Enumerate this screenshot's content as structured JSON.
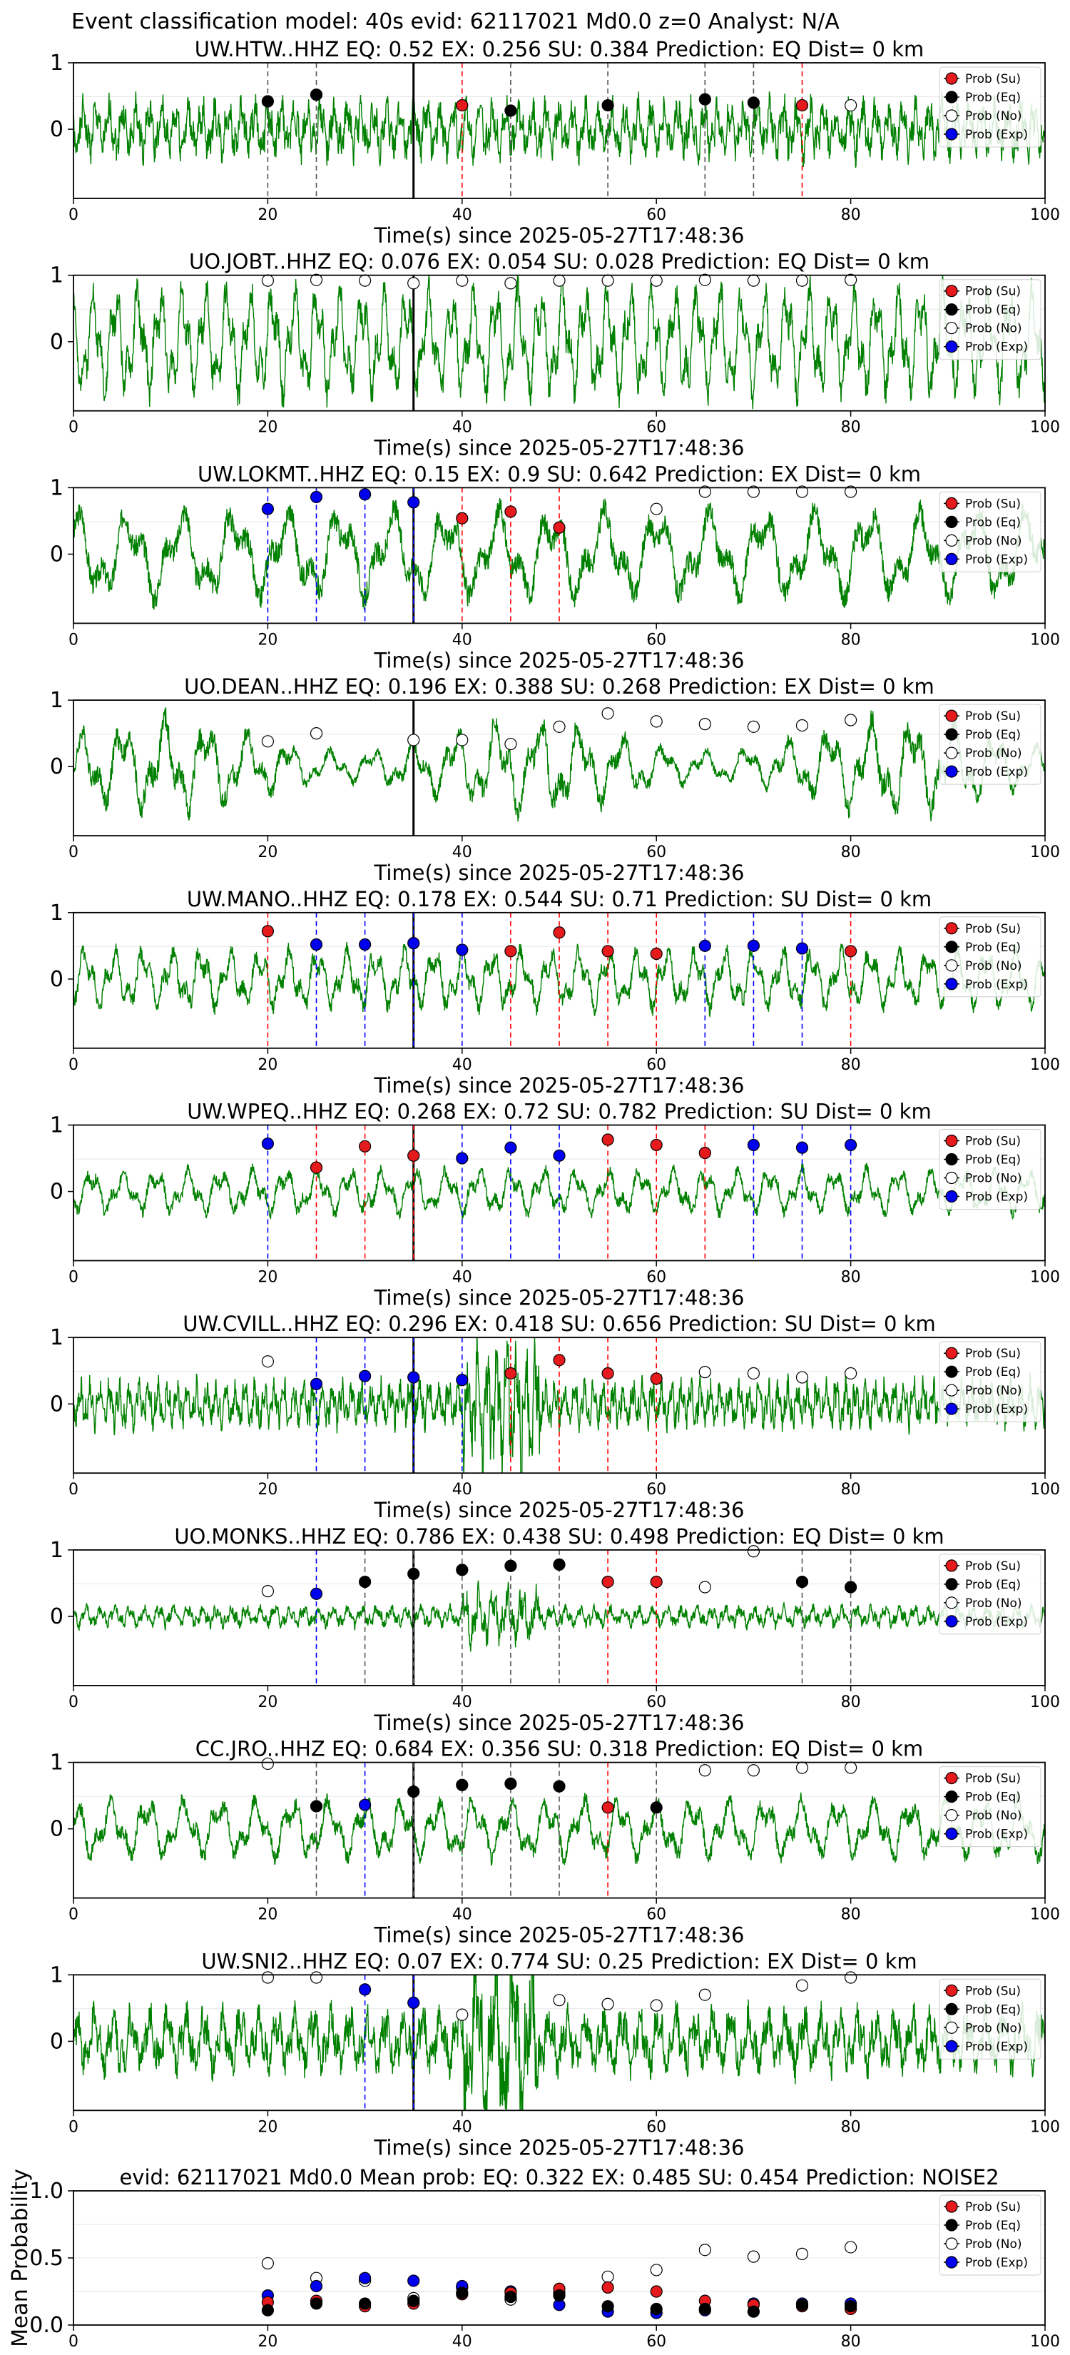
{
  "suptitle": "Event classification model: 40s evid: 62117021 Md0.0 z=0 Analyst: N/A",
  "legend": [
    "Prob (Su)",
    "Prob (Eq)",
    "Prob (No)",
    "Prob (Exp)"
  ],
  "colors": {
    "trace": "#008000",
    "su": "#e41a1c",
    "eq": "#000000",
    "no": "#ffffff",
    "exp": "#0000ee",
    "su_line": "#ff0000",
    "eq_line": "#555555",
    "exp_line": "#0000ff",
    "onset": "#000000"
  },
  "chart_data": [
    {
      "type": "line",
      "title": "UW.HTW..HHZ   EQ: 0.52  EX: 0.256  SU: 0.384   Prediction: EQ    Dist= 0 km",
      "xlabel": "Time(s) since 2025-05-27T17:48:36",
      "xlim": [
        0,
        100
      ],
      "xticks": [
        "0",
        "20",
        "40",
        "60",
        "80",
        "100"
      ],
      "yticks": [
        "1",
        "0"
      ],
      "onset": 35,
      "amp": 0.5,
      "freq": 2.2,
      "seed": 1,
      "markers": [
        {
          "x": 20,
          "y": 0.42,
          "c": "eq"
        },
        {
          "x": 25,
          "y": 0.52,
          "c": "eq"
        },
        {
          "x": 40,
          "y": 0.36,
          "c": "su"
        },
        {
          "x": 45,
          "y": 0.28,
          "c": "eq"
        },
        {
          "x": 55,
          "y": 0.36,
          "c": "eq"
        },
        {
          "x": 65,
          "y": 0.45,
          "c": "eq"
        },
        {
          "x": 70,
          "y": 0.4,
          "c": "eq"
        },
        {
          "x": 75,
          "y": 0.36,
          "c": "su"
        },
        {
          "x": 80,
          "y": 0.36,
          "c": "no"
        }
      ]
    },
    {
      "type": "line",
      "title": "UO.JOBT..HHZ   EQ: 0.076  EX: 0.054  SU: 0.028   Prediction: EQ    Dist= 0 km",
      "xlabel": "Time(s) since 2025-05-27T17:48:36",
      "xlim": [
        0,
        100
      ],
      "xticks": [
        "0",
        "20",
        "40",
        "60",
        "80",
        "100"
      ],
      "yticks": [
        "1",
        "0"
      ],
      "onset": 35,
      "amp": 1.1,
      "freq": 1.3,
      "seed": 2,
      "markers": [
        {
          "x": 20,
          "y": 0.92,
          "c": "no"
        },
        {
          "x": 25,
          "y": 0.93,
          "c": "no"
        },
        {
          "x": 30,
          "y": 0.92,
          "c": "no"
        },
        {
          "x": 35,
          "y": 0.88,
          "c": "no"
        },
        {
          "x": 40,
          "y": 0.92,
          "c": "no"
        },
        {
          "x": 45,
          "y": 0.88,
          "c": "no"
        },
        {
          "x": 50,
          "y": 0.92,
          "c": "no"
        },
        {
          "x": 55,
          "y": 0.92,
          "c": "no"
        },
        {
          "x": 60,
          "y": 0.92,
          "c": "no"
        },
        {
          "x": 65,
          "y": 0.93,
          "c": "no"
        },
        {
          "x": 70,
          "y": 0.92,
          "c": "no"
        },
        {
          "x": 75,
          "y": 0.92,
          "c": "no"
        },
        {
          "x": 80,
          "y": 0.93,
          "c": "no"
        }
      ]
    },
    {
      "type": "line",
      "title": "UW.LOKMT..HHZ   EQ: 0.15  EX: 0.9  SU: 0.642   Prediction: EX    Dist= 0 km",
      "xlabel": "Time(s) since 2025-05-27T17:48:36",
      "xlim": [
        0,
        100
      ],
      "xticks": [
        "0",
        "20",
        "40",
        "60",
        "80",
        "100"
      ],
      "yticks": [
        "1",
        "0"
      ],
      "onset": 35,
      "amp": 0.9,
      "freq": 0.55,
      "seed": 3,
      "markers": [
        {
          "x": 20,
          "y": 0.68,
          "c": "exp"
        },
        {
          "x": 25,
          "y": 0.86,
          "c": "exp"
        },
        {
          "x": 30,
          "y": 0.9,
          "c": "exp"
        },
        {
          "x": 35,
          "y": 0.78,
          "c": "exp"
        },
        {
          "x": 40,
          "y": 0.54,
          "c": "su"
        },
        {
          "x": 45,
          "y": 0.64,
          "c": "su"
        },
        {
          "x": 50,
          "y": 0.4,
          "c": "su"
        },
        {
          "x": 60,
          "y": 0.68,
          "c": "no"
        },
        {
          "x": 65,
          "y": 0.94,
          "c": "no"
        },
        {
          "x": 70,
          "y": 0.94,
          "c": "no"
        },
        {
          "x": 75,
          "y": 0.94,
          "c": "no"
        },
        {
          "x": 80,
          "y": 0.94,
          "c": "no"
        }
      ]
    },
    {
      "type": "line",
      "title": "UO.DEAN..HHZ   EQ: 0.196  EX: 0.388  SU: 0.268   Prediction: EX    Dist= 0 km",
      "xlabel": "Time(s) since 2025-05-27T17:48:36",
      "xlim": [
        0,
        100
      ],
      "xticks": [
        "0",
        "20",
        "40",
        "60",
        "80",
        "100"
      ],
      "yticks": [
        "1",
        "0"
      ],
      "onset": 35,
      "amp": 0.8,
      "freq": 0.7,
      "seed": 4,
      "markers": [
        {
          "x": 20,
          "y": 0.38,
          "c": "no"
        },
        {
          "x": 25,
          "y": 0.5,
          "c": "no"
        },
        {
          "x": 35,
          "y": 0.4,
          "c": "no"
        },
        {
          "x": 40,
          "y": 0.4,
          "c": "no"
        },
        {
          "x": 45,
          "y": 0.34,
          "c": "no"
        },
        {
          "x": 50,
          "y": 0.6,
          "c": "no"
        },
        {
          "x": 55,
          "y": 0.8,
          "c": "no"
        },
        {
          "x": 60,
          "y": 0.68,
          "c": "no"
        },
        {
          "x": 65,
          "y": 0.64,
          "c": "no"
        },
        {
          "x": 70,
          "y": 0.6,
          "c": "no"
        },
        {
          "x": 75,
          "y": 0.62,
          "c": "no"
        },
        {
          "x": 80,
          "y": 0.7,
          "c": "no"
        }
      ]
    },
    {
      "type": "line",
      "title": "UW.MANO..HHZ   EQ: 0.178  EX: 0.544  SU: 0.71   Prediction: SU    Dist= 0 km",
      "xlabel": "Time(s) since 2025-05-27T17:48:36",
      "xlim": [
        0,
        100
      ],
      "xticks": [
        "0",
        "20",
        "40",
        "60",
        "80",
        "100"
      ],
      "yticks": [
        "1",
        "0"
      ],
      "onset": 35,
      "amp": 0.6,
      "freq": 1.0,
      "seed": 5,
      "markers": [
        {
          "x": 20,
          "y": 0.72,
          "c": "su"
        },
        {
          "x": 25,
          "y": 0.52,
          "c": "exp"
        },
        {
          "x": 30,
          "y": 0.52,
          "c": "exp"
        },
        {
          "x": 35,
          "y": 0.54,
          "c": "exp"
        },
        {
          "x": 40,
          "y": 0.44,
          "c": "exp"
        },
        {
          "x": 45,
          "y": 0.42,
          "c": "su"
        },
        {
          "x": 50,
          "y": 0.7,
          "c": "su"
        },
        {
          "x": 55,
          "y": 0.42,
          "c": "su"
        },
        {
          "x": 60,
          "y": 0.38,
          "c": "su"
        },
        {
          "x": 65,
          "y": 0.5,
          "c": "exp"
        },
        {
          "x": 70,
          "y": 0.5,
          "c": "exp"
        },
        {
          "x": 75,
          "y": 0.46,
          "c": "exp"
        },
        {
          "x": 80,
          "y": 0.42,
          "c": "su"
        }
      ]
    },
    {
      "type": "line",
      "title": "UW.WPEQ..HHZ   EQ: 0.268  EX: 0.72  SU: 0.782   Prediction: SU    Dist= 0 km",
      "xlabel": "Time(s) since 2025-05-27T17:48:36",
      "xlim": [
        0,
        100
      ],
      "xticks": [
        "0",
        "20",
        "40",
        "60",
        "80",
        "100"
      ],
      "yticks": [
        "1",
        "0"
      ],
      "onset": 35,
      "amp": 0.45,
      "freq": 0.9,
      "seed": 6,
      "markers": [
        {
          "x": 20,
          "y": 0.72,
          "c": "exp"
        },
        {
          "x": 25,
          "y": 0.36,
          "c": "su"
        },
        {
          "x": 30,
          "y": 0.68,
          "c": "su"
        },
        {
          "x": 35,
          "y": 0.54,
          "c": "su"
        },
        {
          "x": 40,
          "y": 0.5,
          "c": "exp"
        },
        {
          "x": 45,
          "y": 0.66,
          "c": "exp"
        },
        {
          "x": 50,
          "y": 0.54,
          "c": "exp"
        },
        {
          "x": 55,
          "y": 0.78,
          "c": "su"
        },
        {
          "x": 60,
          "y": 0.7,
          "c": "su"
        },
        {
          "x": 65,
          "y": 0.58,
          "c": "su"
        },
        {
          "x": 70,
          "y": 0.7,
          "c": "exp"
        },
        {
          "x": 75,
          "y": 0.66,
          "c": "exp"
        },
        {
          "x": 80,
          "y": 0.7,
          "c": "exp"
        }
      ]
    },
    {
      "type": "line",
      "title": "UW.CVILL..HHZ   EQ: 0.296  EX: 0.418  SU: 0.656   Prediction: SU    Dist= 0 km",
      "xlabel": "Time(s) since 2025-05-27T17:48:36",
      "xlim": [
        0,
        100
      ],
      "xticks": [
        "0",
        "20",
        "40",
        "60",
        "80",
        "100"
      ],
      "yticks": [
        "1",
        "0"
      ],
      "onset": 35,
      "amp": 0.4,
      "freq": 3.0,
      "seed": 7,
      "markers": [
        {
          "x": 20,
          "y": 0.64,
          "c": "no"
        },
        {
          "x": 25,
          "y": 0.3,
          "c": "exp"
        },
        {
          "x": 30,
          "y": 0.42,
          "c": "exp"
        },
        {
          "x": 35,
          "y": 0.4,
          "c": "exp"
        },
        {
          "x": 40,
          "y": 0.36,
          "c": "exp"
        },
        {
          "x": 45,
          "y": 0.46,
          "c": "su"
        },
        {
          "x": 50,
          "y": 0.66,
          "c": "su"
        },
        {
          "x": 55,
          "y": 0.46,
          "c": "su"
        },
        {
          "x": 60,
          "y": 0.38,
          "c": "su"
        },
        {
          "x": 65,
          "y": 0.48,
          "c": "no"
        },
        {
          "x": 70,
          "y": 0.46,
          "c": "no"
        },
        {
          "x": 75,
          "y": 0.4,
          "c": "no"
        },
        {
          "x": 80,
          "y": 0.46,
          "c": "no"
        }
      ]
    },
    {
      "type": "line",
      "title": "UO.MONKS..HHZ   EQ: 0.786  EX: 0.438  SU: 0.498   Prediction: EQ    Dist= 0 km",
      "xlabel": "Time(s) since 2025-05-27T17:48:36",
      "xlim": [
        0,
        100
      ],
      "xticks": [
        "0",
        "20",
        "40",
        "60",
        "80",
        "100"
      ],
      "yticks": [
        "1",
        "0"
      ],
      "onset": 35,
      "amp": 0.18,
      "freq": 2.0,
      "seed": 8,
      "markers": [
        {
          "x": 20,
          "y": 0.38,
          "c": "no"
        },
        {
          "x": 25,
          "y": 0.34,
          "c": "exp"
        },
        {
          "x": 30,
          "y": 0.52,
          "c": "eq"
        },
        {
          "x": 35,
          "y": 0.64,
          "c": "eq"
        },
        {
          "x": 40,
          "y": 0.7,
          "c": "eq"
        },
        {
          "x": 45,
          "y": 0.76,
          "c": "eq"
        },
        {
          "x": 50,
          "y": 0.78,
          "c": "eq"
        },
        {
          "x": 55,
          "y": 0.52,
          "c": "su"
        },
        {
          "x": 60,
          "y": 0.52,
          "c": "su"
        },
        {
          "x": 65,
          "y": 0.44,
          "c": "no"
        },
        {
          "x": 70,
          "y": 0.98,
          "c": "no"
        },
        {
          "x": 75,
          "y": 0.52,
          "c": "eq"
        },
        {
          "x": 80,
          "y": 0.44,
          "c": "eq"
        }
      ]
    },
    {
      "type": "line",
      "title": "CC.JRO..HHZ   EQ: 0.684  EX: 0.356  SU: 0.318   Prediction: EQ    Dist= 0 km",
      "xlabel": "Time(s) since 2025-05-27T17:48:36",
      "xlim": [
        0,
        100
      ],
      "xticks": [
        "0",
        "20",
        "40",
        "60",
        "80",
        "100"
      ],
      "yticks": [
        "1",
        "0"
      ],
      "onset": 35,
      "amp": 0.6,
      "freq": 0.8,
      "seed": 9,
      "markers": [
        {
          "x": 20,
          "y": 0.98,
          "c": "no"
        },
        {
          "x": 25,
          "y": 0.34,
          "c": "eq"
        },
        {
          "x": 30,
          "y": 0.36,
          "c": "exp"
        },
        {
          "x": 35,
          "y": 0.56,
          "c": "eq"
        },
        {
          "x": 40,
          "y": 0.66,
          "c": "eq"
        },
        {
          "x": 45,
          "y": 0.68,
          "c": "eq"
        },
        {
          "x": 50,
          "y": 0.64,
          "c": "eq"
        },
        {
          "x": 55,
          "y": 0.32,
          "c": "su"
        },
        {
          "x": 60,
          "y": 0.32,
          "c": "eq"
        },
        {
          "x": 65,
          "y": 0.88,
          "c": "no"
        },
        {
          "x": 70,
          "y": 0.88,
          "c": "no"
        },
        {
          "x": 75,
          "y": 0.92,
          "c": "no"
        },
        {
          "x": 80,
          "y": 0.92,
          "c": "no"
        }
      ]
    },
    {
      "type": "line",
      "title": "UW.SNI2..HHZ   EQ: 0.07  EX: 0.774  SU: 0.25   Prediction: EX    Dist= 0 km",
      "xlabel": "Time(s) since 2025-05-27T17:48:36",
      "xlim": [
        0,
        100
      ],
      "xticks": [
        "0",
        "20",
        "40",
        "60",
        "80",
        "100"
      ],
      "yticks": [
        "1",
        "0"
      ],
      "onset": 35,
      "amp": 0.55,
      "freq": 1.6,
      "seed": 10,
      "markers": [
        {
          "x": 20,
          "y": 0.96,
          "c": "no"
        },
        {
          "x": 25,
          "y": 0.96,
          "c": "no"
        },
        {
          "x": 30,
          "y": 0.78,
          "c": "exp"
        },
        {
          "x": 35,
          "y": 0.58,
          "c": "exp"
        },
        {
          "x": 40,
          "y": 0.4,
          "c": "no"
        },
        {
          "x": 50,
          "y": 0.62,
          "c": "no"
        },
        {
          "x": 55,
          "y": 0.56,
          "c": "no"
        },
        {
          "x": 60,
          "y": 0.54,
          "c": "no"
        },
        {
          "x": 65,
          "y": 0.7,
          "c": "no"
        },
        {
          "x": 75,
          "y": 0.84,
          "c": "no"
        },
        {
          "x": 80,
          "y": 0.96,
          "c": "no"
        }
      ]
    },
    {
      "type": "scatter",
      "title": "evid: 62117021  Md0.0   Mean prob:   EQ: 0.322  EX: 0.485  SU: 0.454   Prediction: NOISE2",
      "ylabel": "Mean Probability",
      "xlim": [
        0,
        100
      ],
      "ylim": [
        0,
        1
      ],
      "xticks": [
        "0",
        "20",
        "40",
        "60",
        "80",
        "100"
      ],
      "yticks": [
        "1.0",
        "0.5",
        "0.0"
      ],
      "x": [
        20,
        25,
        30,
        35,
        40,
        45,
        50,
        55,
        60,
        65,
        70,
        75,
        80
      ],
      "series": [
        {
          "key": "no",
          "values": [
            0.46,
            0.35,
            0.33,
            0.2,
            0.28,
            0.19,
            0.24,
            0.36,
            0.41,
            0.56,
            0.51,
            0.53,
            0.58
          ]
        },
        {
          "key": "exp",
          "values": [
            0.22,
            0.29,
            0.35,
            0.33,
            0.29,
            0.25,
            0.15,
            0.1,
            0.09,
            0.11,
            0.16,
            0.16,
            0.16
          ]
        },
        {
          "key": "su",
          "values": [
            0.17,
            0.18,
            0.14,
            0.16,
            0.23,
            0.24,
            0.27,
            0.28,
            0.25,
            0.18,
            0.15,
            0.14,
            0.12
          ]
        },
        {
          "key": "eq",
          "values": [
            0.11,
            0.16,
            0.16,
            0.18,
            0.24,
            0.21,
            0.22,
            0.14,
            0.12,
            0.12,
            0.1,
            0.15,
            0.14
          ]
        }
      ]
    }
  ]
}
